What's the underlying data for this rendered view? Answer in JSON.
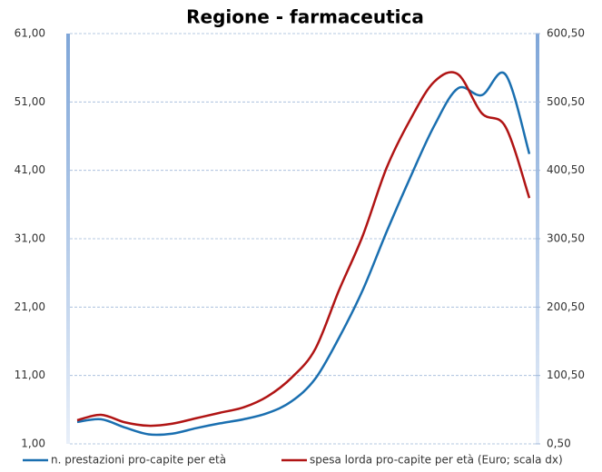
{
  "chart_data": {
    "type": "line",
    "title": "Regione - farmaceutica",
    "categories": [
      null,
      null,
      null,
      null,
      null,
      null,
      null,
      null,
      null,
      null,
      null,
      null,
      null,
      null,
      null,
      null,
      null,
      null,
      null,
      null
    ],
    "series": [
      {
        "name": "n. prestazioni pro-capite per età",
        "color": "#1a6fb0",
        "values": [
          4.2,
          4.6,
          3.4,
          2.4,
          2.5,
          3.3,
          4.0,
          4.6,
          5.5,
          7.2,
          10.5,
          16.5,
          23.5,
          32,
          40,
          47.5,
          53,
          52,
          55,
          43.4
        ]
      },
      {
        "name": "spesa lorda pro-capite per età (Euro; scala dx)",
        "color": "#b01414",
        "axis": "y2",
        "values": [
          35,
          43,
          32,
          27,
          30,
          38,
          46,
          54,
          70,
          97,
          139,
          225,
          305,
          404,
          475,
          530,
          541,
          484,
          464,
          360
        ]
      }
    ],
    "ylim": [
      1,
      61
    ],
    "yticks": [
      {
        "value": 1,
        "label": "1,00"
      },
      {
        "value": 11,
        "label": "11,00"
      },
      {
        "value": 21,
        "label": "21,00"
      },
      {
        "value": 31,
        "label": "31,00"
      },
      {
        "value": 41,
        "label": "41,00"
      },
      {
        "value": 51,
        "label": "51,00"
      },
      {
        "value": 61,
        "label": "61,00"
      }
    ],
    "y2lim": [
      0.5,
      600.5
    ],
    "y2ticks": [
      {
        "value": 0.5,
        "label": "0,50"
      },
      {
        "value": 100.5,
        "label": "100,50"
      },
      {
        "value": 200.5,
        "label": "200,50"
      },
      {
        "value": 300.5,
        "label": "300,50"
      },
      {
        "value": 400.5,
        "label": "400,50"
      },
      {
        "value": 500.5,
        "label": "500,50"
      },
      {
        "value": 600.5,
        "label": "600,50"
      }
    ],
    "grid": true,
    "legend": "bottom"
  }
}
